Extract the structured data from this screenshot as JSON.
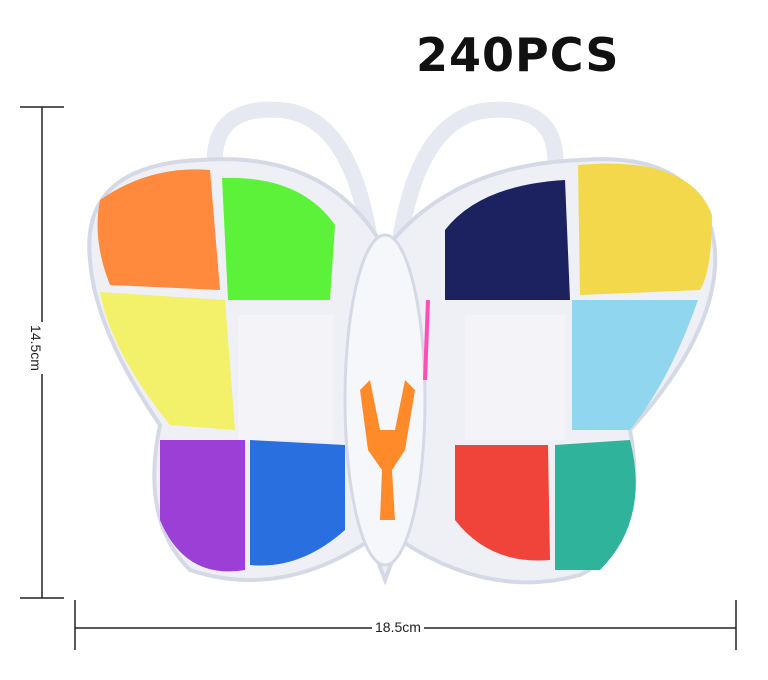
{
  "title": "240PCS",
  "dimensions": {
    "height_label": "14.5cm",
    "width_label": "18.5cm"
  },
  "colors": {
    "orange": "#ff8a3d",
    "green": "#5df23a",
    "navy": "#1c2160",
    "yellow": "#f2d84a",
    "lightyellow": "#f3f06a",
    "lightblue": "#8fd6ee",
    "purple": "#9b3fd6",
    "blue": "#2a6fe0",
    "mixed_red_yellow": "#f0443a",
    "mixed_teal_yellow": "#2fb39a",
    "handle_orange": "#ff8a2a"
  }
}
